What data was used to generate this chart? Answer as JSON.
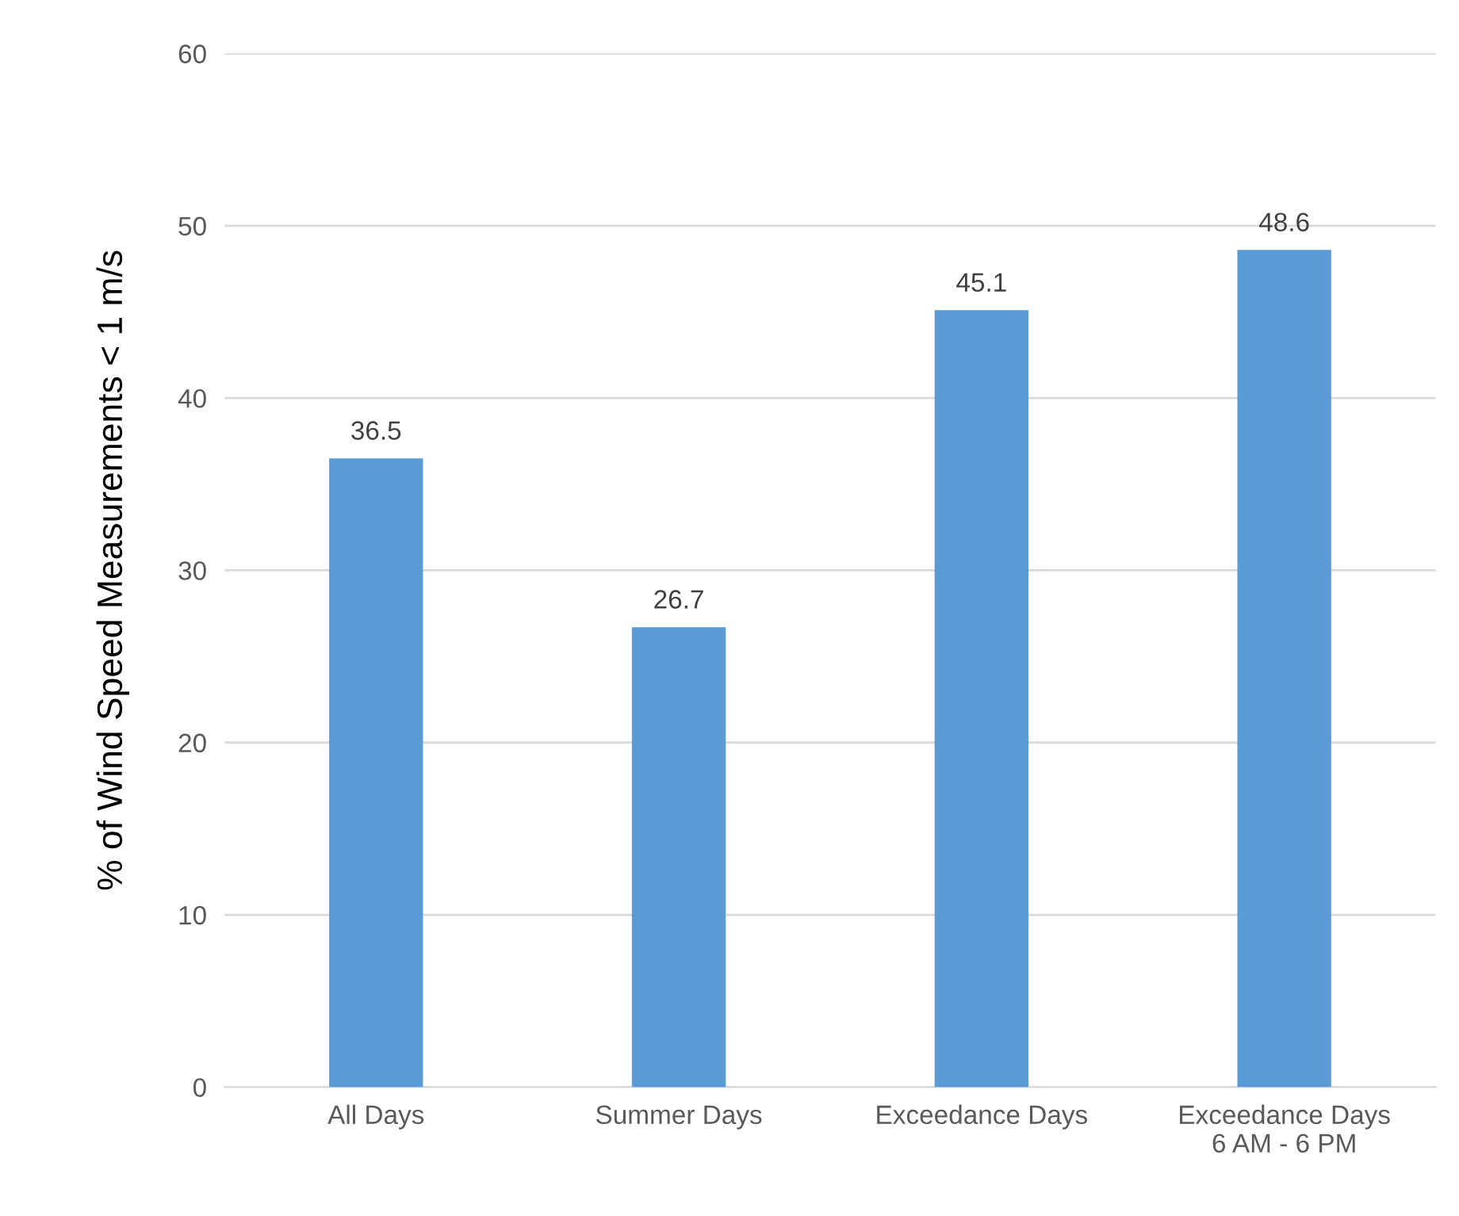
{
  "chart_data": {
    "type": "bar",
    "ylabel": "% of Wind Speed Measurements < 1 m/s",
    "categories": [
      "All Days",
      "Summer Days",
      "Exceedance Days",
      "Exceedance Days\n6 AM - 6 PM"
    ],
    "values": [
      36.5,
      26.7,
      45.1,
      48.6
    ],
    "color": "#5b9bd5",
    "ylim": [
      0,
      60
    ],
    "yticks": [
      0,
      10,
      20,
      30,
      40,
      50,
      60
    ],
    "grid": "y",
    "data_labels": true
  }
}
